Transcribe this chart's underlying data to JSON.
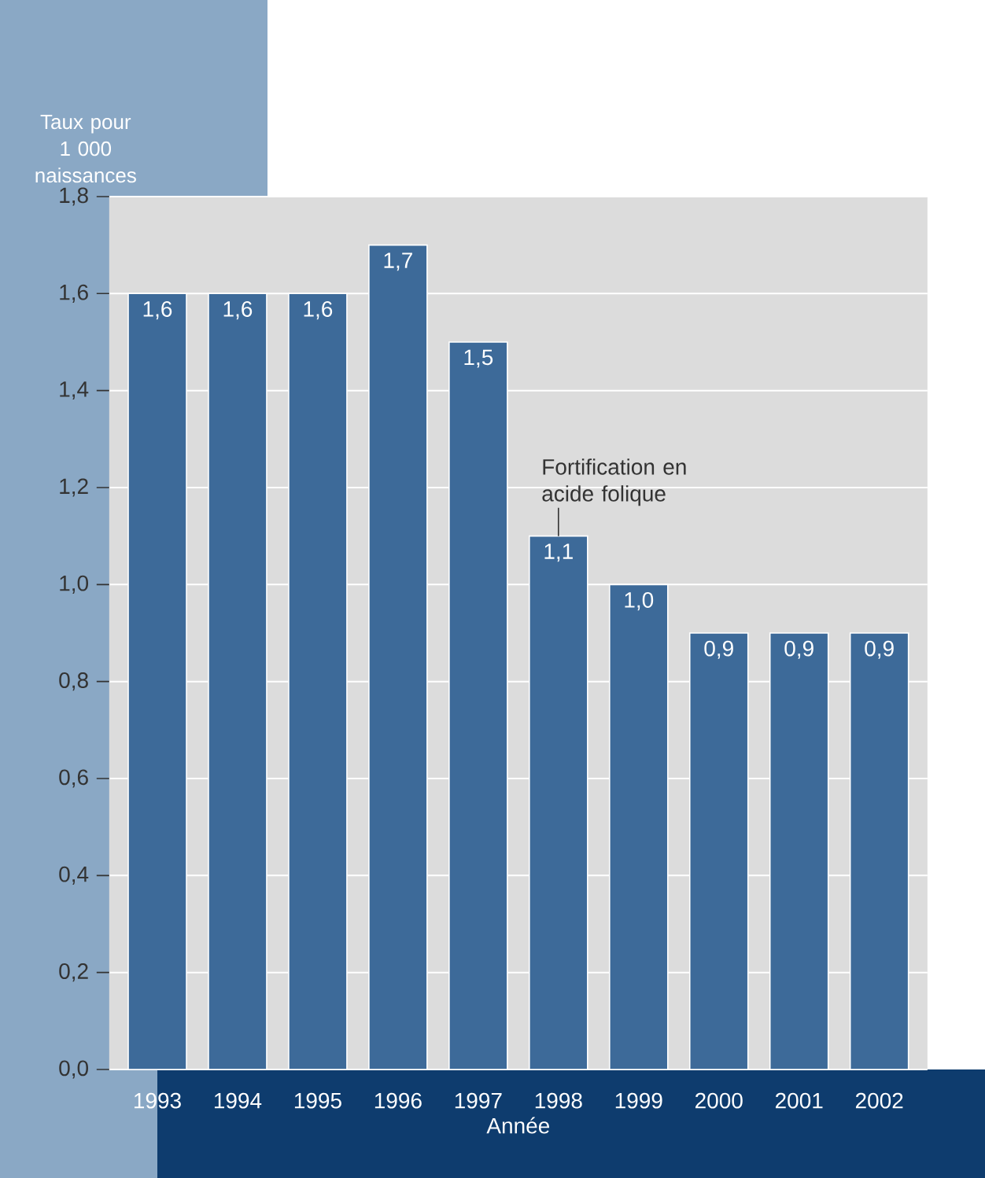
{
  "chart_data": {
    "type": "bar",
    "ylabel": "Taux pour 1 000 naissances",
    "xlabel": "Année",
    "categories": [
      "1993",
      "1994",
      "1995",
      "1996",
      "1997",
      "1998",
      "1999",
      "2000",
      "2001",
      "2002"
    ],
    "values": [
      1.6,
      1.6,
      1.6,
      1.7,
      1.5,
      1.1,
      1.0,
      0.9,
      0.9,
      0.9
    ],
    "value_labels": [
      "1,6",
      "1,6",
      "1,6",
      "1,7",
      "1,5",
      "1,1",
      "1,0",
      "0,9",
      "0,9",
      "0,9"
    ],
    "color": "#3d6a99",
    "grid": "y",
    "ylim": [
      0,
      1.8
    ],
    "yticks": [
      {
        "value": 0,
        "label": "0,0"
      },
      {
        "value": 0.2,
        "label": "0,2"
      },
      {
        "value": 0.4,
        "label": "0,4"
      },
      {
        "value": 0.6,
        "label": "0,6"
      },
      {
        "value": 0.8,
        "label": "0,8"
      },
      {
        "value": 1.0,
        "label": "1,0"
      },
      {
        "value": 1.2,
        "label": "1,2"
      },
      {
        "value": 1.4,
        "label": "1,4"
      },
      {
        "value": 1.6,
        "label": "1,6"
      },
      {
        "value": 1.8,
        "label": "1,8"
      }
    ],
    "annotations": [
      {
        "text": "Fortification en acide folique",
        "x": "1998",
        "y": 1.1
      }
    ]
  }
}
